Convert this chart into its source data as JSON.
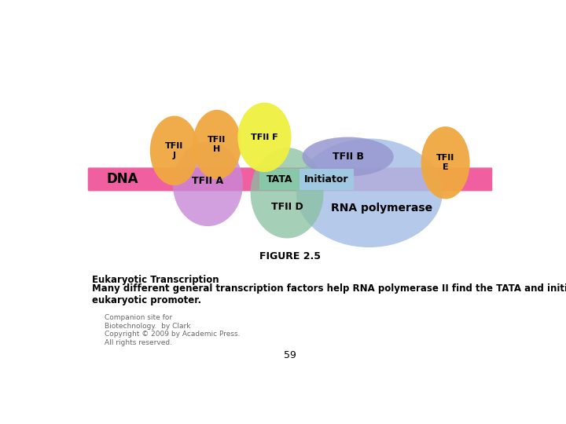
{
  "background_color": "#ffffff",
  "title": "FIGURE 2.5",
  "caption_bold": "Eukaryotic Transcription",
  "caption_text": "Many different general transcription factors help RNA polymerase II find the TATA and initiator box region of a\neukaryotic promoter.",
  "footer_line1": "Companion site for",
  "footer_line2": "Biotechnology.  by Clark",
  "footer_line3": "Copyright © 2009 by Academic Press.",
  "footer_line4": "All rights reserved.",
  "footer_page": "59",
  "dna_color": "#f060a0",
  "rna_pol_color": "#a8c0e8",
  "tfiia_color": "#c888d8",
  "tfiid_color": "#88c0a0",
  "tfiib_color": "#9898d0",
  "tfiij_color": "#f0a840",
  "tfiih_color": "#f0a840",
  "tfiif_color": "#f0f040",
  "tfiie_color": "#f0a840",
  "initiator_bg": "#a0c8e0",
  "tata_bg": "#88c8a8"
}
